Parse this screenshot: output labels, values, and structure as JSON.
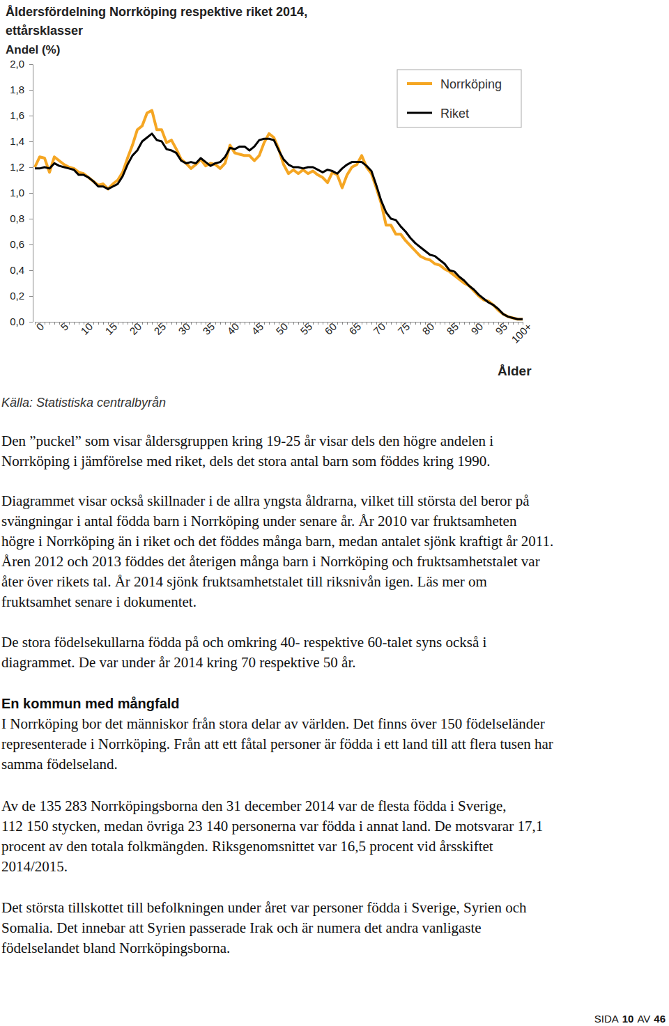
{
  "chart_data": {
    "type": "line",
    "title": "Åldersfördelning Norrköping respektive riket 2014, ettårsklasser",
    "y_label": "Andel (%)",
    "x_label": "Ålder",
    "source": "Källa: Statistiska centralbyrån",
    "categories": [
      "0",
      null,
      null,
      null,
      null,
      "5",
      null,
      null,
      null,
      null,
      "10",
      null,
      null,
      null,
      null,
      "15",
      null,
      null,
      null,
      null,
      "20",
      null,
      null,
      null,
      null,
      "25",
      null,
      null,
      null,
      null,
      "30",
      null,
      null,
      null,
      null,
      "35",
      null,
      null,
      null,
      null,
      "40",
      null,
      null,
      null,
      null,
      "45",
      null,
      null,
      null,
      null,
      "50",
      null,
      null,
      null,
      null,
      "55",
      null,
      null,
      null,
      null,
      "60",
      null,
      null,
      null,
      null,
      "65",
      null,
      null,
      null,
      null,
      "70",
      null,
      null,
      null,
      null,
      "75",
      null,
      null,
      null,
      null,
      "80",
      null,
      null,
      null,
      null,
      "85",
      null,
      null,
      null,
      null,
      "90",
      null,
      null,
      null,
      null,
      "95",
      null,
      null,
      null,
      null,
      "100+"
    ],
    "series": [
      {
        "name": "Norrköping",
        "color": "#f5a623",
        "values": [
          1.2,
          1.28,
          1.27,
          1.16,
          1.28,
          1.25,
          1.22,
          1.2,
          1.19,
          1.16,
          1.15,
          1.12,
          1.09,
          1.06,
          1.07,
          1.03,
          1.07,
          1.1,
          1.16,
          1.27,
          1.37,
          1.49,
          1.52,
          1.62,
          1.64,
          1.49,
          1.49,
          1.39,
          1.41,
          1.34,
          1.26,
          1.23,
          1.19,
          1.22,
          1.26,
          1.21,
          1.23,
          1.22,
          1.19,
          1.23,
          1.37,
          1.31,
          1.3,
          1.29,
          1.29,
          1.25,
          1.29,
          1.39,
          1.46,
          1.43,
          1.34,
          1.22,
          1.15,
          1.18,
          1.15,
          1.18,
          1.15,
          1.17,
          1.14,
          1.12,
          1.08,
          1.16,
          1.14,
          1.04,
          1.14,
          1.2,
          1.22,
          1.29,
          1.2,
          1.15,
          1.04,
          0.92,
          0.75,
          0.75,
          0.68,
          0.68,
          0.63,
          0.59,
          0.55,
          0.51,
          0.49,
          0.48,
          0.45,
          0.44,
          0.41,
          0.39,
          0.36,
          0.33,
          0.3,
          0.28,
          0.24,
          0.2,
          0.17,
          0.16,
          0.13,
          0.09,
          0.06,
          0.04,
          0.03,
          0.02,
          0.02
        ]
      },
      {
        "name": "Riket",
        "color": "#000000",
        "values": [
          1.19,
          1.19,
          1.2,
          1.19,
          1.23,
          1.21,
          1.2,
          1.19,
          1.18,
          1.14,
          1.14,
          1.12,
          1.09,
          1.05,
          1.05,
          1.03,
          1.05,
          1.07,
          1.13,
          1.22,
          1.29,
          1.33,
          1.4,
          1.43,
          1.46,
          1.41,
          1.4,
          1.34,
          1.33,
          1.31,
          1.25,
          1.23,
          1.24,
          1.23,
          1.27,
          1.24,
          1.21,
          1.23,
          1.24,
          1.28,
          1.35,
          1.34,
          1.36,
          1.36,
          1.33,
          1.36,
          1.41,
          1.42,
          1.42,
          1.41,
          1.33,
          1.26,
          1.22,
          1.2,
          1.2,
          1.19,
          1.2,
          1.2,
          1.18,
          1.16,
          1.18,
          1.17,
          1.15,
          1.19,
          1.22,
          1.24,
          1.24,
          1.24,
          1.21,
          1.17,
          1.06,
          0.94,
          0.85,
          0.8,
          0.79,
          0.74,
          0.7,
          0.65,
          0.61,
          0.58,
          0.55,
          0.52,
          0.51,
          0.48,
          0.45,
          0.4,
          0.39,
          0.35,
          0.32,
          0.28,
          0.25,
          0.21,
          0.18,
          0.15,
          0.13,
          0.1,
          0.06,
          0.04,
          0.03,
          0.02,
          0.02
        ]
      }
    ],
    "ylim": [
      0,
      2
    ],
    "yticks": [
      {
        "value": 0,
        "label": "0,0"
      },
      {
        "value": 0.2,
        "label": "0,2"
      },
      {
        "value": 0.4,
        "label": "0,4"
      },
      {
        "value": 0.6,
        "label": "0,6"
      },
      {
        "value": 0.8,
        "label": "0,8"
      },
      {
        "value": 1,
        "label": "1,0"
      },
      {
        "value": 1.2,
        "label": "1,2"
      },
      {
        "value": 1.4,
        "label": "1,4"
      },
      {
        "value": 1.6,
        "label": "1,6"
      },
      {
        "value": 1.8,
        "label": "1,8"
      },
      {
        "value": 2,
        "label": "2,0"
      }
    ],
    "grid": false,
    "legend": "upper right"
  },
  "document": {
    "intro_paragraphs": [
      [
        "Den ”puckel” som visar åldersgruppen kring 19-25 år visar dels den högre andelen i",
        "Norrköping i jämförelse med riket, dels det stora antal barn som föddes kring 1990."
      ],
      [
        "Diagrammet visar också skillnader i de allra yngsta åldrarna, vilket till största del beror på",
        "svängningar i antal födda barn i Norrköping under senare år. År 2010 var fruktsamheten",
        "högre i Norrköping än i riket och det föddes många barn, medan antalet sjönk kraftigt år 2011.",
        "Åren 2012 och 2013 föddes det återigen många barn i Norrköping och fruktsamhetstalet var",
        "åter över rikets tal. År 2014 sjönk fruktsamhetstalet till riksnivån igen. Läs mer om",
        "fruktsamhet senare i dokumentet."
      ],
      [
        "De stora födelsekullarna födda på och omkring 40- respektive 60-talet syns också i",
        "diagrammet. De var under år 2014 kring 70 respektive 50 år."
      ]
    ],
    "heading": "En kommun med mångfald",
    "section_paragraphs": [
      [
        "I Norrköping bor det människor från stora delar av världen. Det finns över 150 födelseländer",
        "representerade i Norrköping. Från att ett fåtal personer är födda i ett land till att flera tusen har",
        "samma födelseland."
      ],
      [
        "Av de 135 283 Norrköpingsborna den 31 december 2014 var de flesta födda i Sverige,",
        "112 150 stycken, medan övriga 23 140 personerna var födda i annat land. De motsvarar 17,1",
        "procent av den totala folkmängden. Riksgenomsnittet var 16,5 procent vid årsskiftet",
        "2014/2015."
      ],
      [
        "Det största tillskottet till befolkningen under året var personer födda i Sverige, Syrien och",
        "Somalia. Det innebar att Syrien passerade Irak och är numera det andra vanligaste",
        "födelselandet bland Norrköpingsborna."
      ]
    ],
    "footer": {
      "label": "SIDA",
      "page": 10,
      "separator": "AV",
      "total": 46
    }
  }
}
